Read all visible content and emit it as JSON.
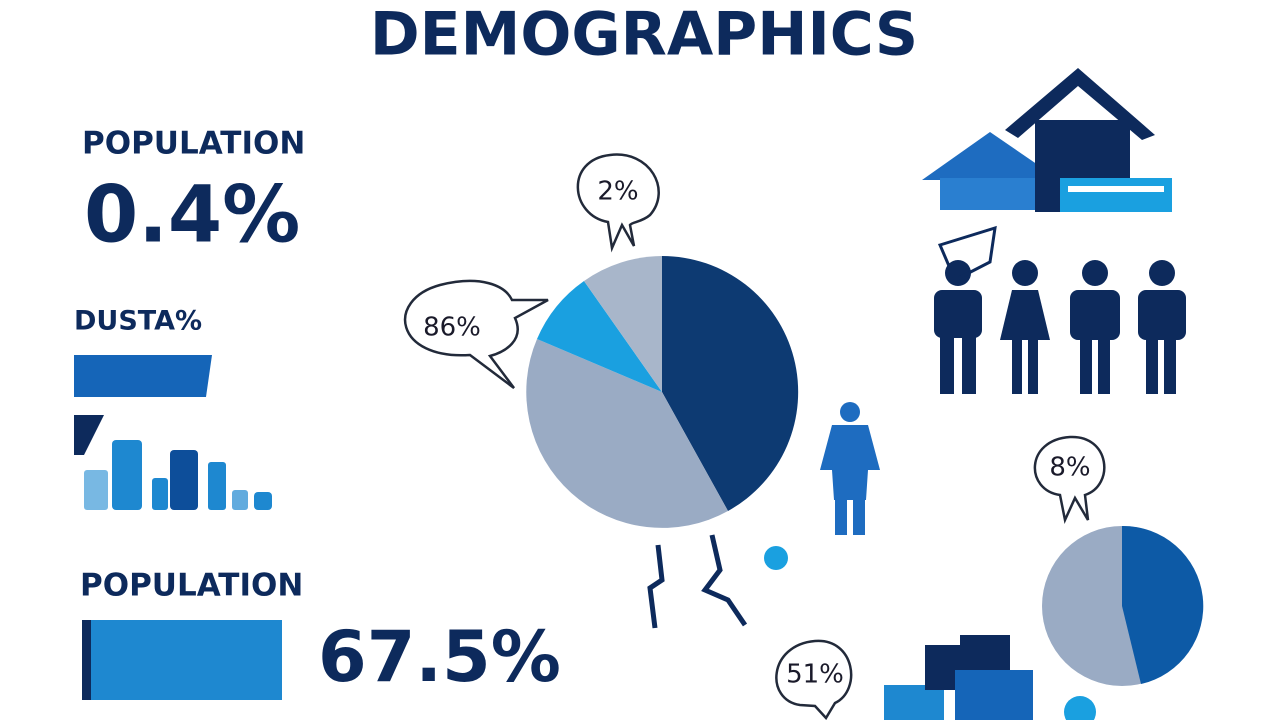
{
  "header": {
    "title": "DEMOGRAPHICS"
  },
  "left": {
    "label_top": "POPULATION",
    "value_top": "0.4%",
    "label_mid": "DUSTA%",
    "label_bottom": "POPULATION",
    "value_bottom": "67.5%"
  },
  "callouts": [
    "2%",
    "86%",
    "8%",
    "51%"
  ]
}
